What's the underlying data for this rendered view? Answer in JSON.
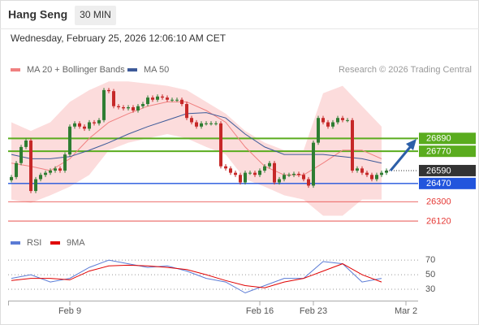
{
  "chart_data": [
    {
      "type": "candlestick",
      "title": "Hang Seng",
      "interval": "30 MIN",
      "subtitle": "Wednesday, February 25, 2026 12:06:10 AM CET",
      "credit": "Research © 2026 Trading Central",
      "xlim": [
        -0.67,
        83.5
      ],
      "ylim": [
        26060,
        27460
      ],
      "xticks": [
        {
          "value": 12,
          "label": "Feb 9"
        },
        {
          "value": 51,
          "label": "Feb 16"
        },
        {
          "value": 62,
          "label": "Feb 23"
        },
        {
          "value": 81,
          "label": "Mar 2"
        }
      ],
      "up_color": "#2e7d32",
      "down_color": "#c62828",
      "candles": [
        [
          26500,
          26550,
          26480,
          26530
        ],
        [
          26530,
          26680,
          26510,
          26660
        ],
        [
          26660,
          26830,
          26640,
          26810
        ],
        [
          26810,
          26890,
          26790,
          26870
        ],
        [
          26870,
          26890,
          26380,
          26400
        ],
        [
          26400,
          26530,
          26380,
          26510
        ],
        [
          26510,
          26570,
          26490,
          26550
        ],
        [
          26550,
          26590,
          26530,
          26570
        ],
        [
          26570,
          26610,
          26550,
          26590
        ],
        [
          26590,
          26630,
          26570,
          26610
        ],
        [
          26610,
          26630,
          26570,
          26590
        ],
        [
          26590,
          26760,
          26570,
          26740
        ],
        [
          26740,
          27020,
          26720,
          27000
        ],
        [
          27000,
          27050,
          26980,
          27030
        ],
        [
          27030,
          27050,
          26980,
          27000
        ],
        [
          27000,
          27020,
          26960,
          26980
        ],
        [
          26980,
          27060,
          26960,
          27040
        ],
        [
          27040,
          27060,
          27010,
          27030
        ],
        [
          27030,
          27080,
          27010,
          27060
        ],
        [
          27060,
          27360,
          27040,
          27340
        ],
        [
          27340,
          27360,
          27310,
          27330
        ],
        [
          27330,
          27350,
          27170,
          27190
        ],
        [
          27190,
          27210,
          27160,
          27180
        ],
        [
          27180,
          27200,
          27150,
          27170
        ],
        [
          27170,
          27200,
          27150,
          27180
        ],
        [
          27180,
          27200,
          27130,
          27150
        ],
        [
          27150,
          27210,
          27130,
          27190
        ],
        [
          27190,
          27230,
          27170,
          27210
        ],
        [
          27210,
          27290,
          27190,
          27270
        ],
        [
          27270,
          27290,
          27230,
          27250
        ],
        [
          27250,
          27300,
          27230,
          27280
        ],
        [
          27280,
          27300,
          27250,
          27270
        ],
        [
          27270,
          27290,
          27230,
          27250
        ],
        [
          27250,
          27270,
          27230,
          27250
        ],
        [
          27250,
          27270,
          27230,
          27250
        ],
        [
          27250,
          27270,
          27190,
          27210
        ],
        [
          27210,
          27230,
          27060,
          27080
        ],
        [
          27080,
          27100,
          27020,
          27040
        ],
        [
          27040,
          27060,
          26980,
          27000
        ],
        [
          27000,
          27050,
          26980,
          27030
        ],
        [
          27030,
          27050,
          27010,
          27030
        ],
        [
          27030,
          27050,
          27010,
          27030
        ],
        [
          27030,
          27050,
          27010,
          27030
        ],
        [
          27030,
          27050,
          26610,
          26630
        ],
        [
          26630,
          26650,
          26590,
          26610
        ],
        [
          26610,
          26630,
          26550,
          26570
        ],
        [
          26570,
          26590,
          26530,
          26550
        ],
        [
          26550,
          26570,
          26460,
          26480
        ],
        [
          26480,
          26590,
          26460,
          26570
        ],
        [
          26570,
          26590,
          26550,
          26570
        ],
        [
          26570,
          26590,
          26530,
          26550
        ],
        [
          26550,
          26610,
          26530,
          26590
        ],
        [
          26590,
          26650,
          26570,
          26630
        ],
        [
          26630,
          26680,
          26610,
          26660
        ],
        [
          26660,
          26680,
          26460,
          26480
        ],
        [
          26480,
          26530,
          26460,
          26510
        ],
        [
          26510,
          26570,
          26490,
          26550
        ],
        [
          26550,
          26570,
          26530,
          26550
        ],
        [
          26550,
          26580,
          26530,
          26560
        ],
        [
          26560,
          26580,
          26530,
          26550
        ],
        [
          26550,
          26570,
          26490,
          26510
        ],
        [
          26510,
          26530,
          26430,
          26450
        ],
        [
          26450,
          26870,
          26430,
          26850
        ],
        [
          26850,
          27100,
          26830,
          27080
        ],
        [
          27080,
          27100,
          27020,
          27040
        ],
        [
          27040,
          27060,
          26980,
          27000
        ],
        [
          27000,
          27060,
          26980,
          27040
        ],
        [
          27040,
          27100,
          27020,
          27080
        ],
        [
          27080,
          27100,
          27040,
          27060
        ],
        [
          27060,
          27080,
          27040,
          27060
        ],
        [
          27060,
          27080,
          26570,
          26590
        ],
        [
          26590,
          26630,
          26570,
          26610
        ],
        [
          26610,
          26630,
          26550,
          26570
        ],
        [
          26570,
          26590,
          26530,
          26550
        ],
        [
          26550,
          26570,
          26490,
          26510
        ],
        [
          26510,
          26570,
          26490,
          26550
        ],
        [
          26550,
          26590,
          26530,
          26570
        ],
        [
          26570,
          26610,
          26550,
          26590
        ]
      ],
      "x": [
        0,
        4,
        8,
        12,
        16,
        20,
        24,
        28,
        32,
        36,
        40,
        44,
        48,
        52,
        56,
        60,
        64,
        68,
        72,
        76
      ],
      "band_color": "#fcdcdc",
      "band_upper": [
        27040,
        26960,
        27040,
        27230,
        27340,
        27420,
        27420,
        27400,
        27380,
        27340,
        27230,
        27120,
        26960,
        26850,
        26780,
        26780,
        27310,
        27380,
        27190,
        27000
      ],
      "band_lower": [
        26320,
        26290,
        26360,
        26440,
        26550,
        26780,
        26850,
        26890,
        26930,
        26890,
        26810,
        26740,
        26510,
        26440,
        26360,
        26320,
        26170,
        26170,
        26320,
        26320
      ],
      "series": [
        {
          "name": "MA 20 + Bollinger Bands",
          "color": "#f08080",
          "values": [
            26660,
            26630,
            26590,
            26700,
            26890,
            27040,
            27120,
            27190,
            27230,
            27230,
            27150,
            27040,
            26810,
            26630,
            26550,
            26550,
            26660,
            26780,
            26780,
            26700
          ]
        },
        {
          "name": "MA 50",
          "color": "#3d5a99",
          "values": [
            26740,
            26700,
            26700,
            26720,
            26780,
            26850,
            26930,
            27000,
            27060,
            27120,
            27130,
            27080,
            26930,
            26810,
            26740,
            26740,
            26740,
            26720,
            26700,
            26660
          ]
        }
      ],
      "levels": [
        {
          "value": 26890,
          "color": "#5aac1e"
        },
        {
          "value": 26770,
          "color": "#5aac1e"
        },
        {
          "value": 26470,
          "color": "#2255dd"
        },
        {
          "value": 26300,
          "color": "#e53935"
        },
        {
          "value": 26120,
          "color": "#e53935"
        }
      ],
      "last_price": {
        "value": 26590,
        "color": "#333333"
      }
    },
    {
      "type": "line",
      "xlim": [
        -0.67,
        83.5
      ],
      "ylim": [
        20,
        98
      ],
      "yticks": [
        70,
        50,
        30
      ],
      "x": [
        0,
        4,
        8,
        12,
        16,
        20,
        24,
        28,
        32,
        36,
        40,
        44,
        48,
        52,
        56,
        60,
        64,
        68,
        72,
        76
      ],
      "series": [
        {
          "name": "RSI",
          "color": "#5b7bd5",
          "values": [
            45,
            50,
            40,
            45,
            60,
            70,
            65,
            60,
            62,
            55,
            45,
            40,
            25,
            35,
            45,
            45,
            68,
            65,
            40,
            45
          ]
        },
        {
          "name": "9MA",
          "color": "#e00000",
          "values": [
            42,
            45,
            45,
            43,
            55,
            62,
            63,
            62,
            60,
            57,
            50,
            42,
            35,
            32,
            40,
            45,
            55,
            65,
            50,
            40
          ]
        }
      ]
    }
  ]
}
